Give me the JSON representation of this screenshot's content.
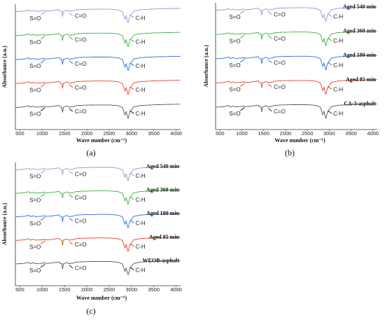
{
  "chart_data": [
    {
      "panel_label": "(a)",
      "type": "line",
      "xlabel": "Wave number (cm⁻¹)",
      "ylabel": "Absorbance (a.u.)",
      "xlim": [
        400,
        4100
      ],
      "xticks": [
        500,
        1000,
        1500,
        2000,
        2500,
        3000,
        3500,
        4000
      ],
      "tick_labels": [
        "500",
        "1000",
        "1500",
        "2000",
        "2500",
        "3000",
        "3500",
        "4000"
      ],
      "series": [
        {
          "color": "#a98bd6",
          "annotations": [
            "S=O",
            "C=O",
            "C-H"
          ]
        },
        {
          "color": "#3cb043",
          "annotations": [
            "S=O",
            "C=O",
            "C-H"
          ]
        },
        {
          "color": "#2a6fdb",
          "annotations": [
            "S=O",
            "C=O",
            "C-H"
          ]
        },
        {
          "color": "#e8412c",
          "annotations": [
            "S=O",
            "C=O",
            "C-H"
          ]
        },
        {
          "color": "#555555",
          "annotations": [
            "S=O",
            "C=O",
            "C-H"
          ]
        }
      ]
    },
    {
      "panel_label": "(b)",
      "type": "line",
      "xlabel": "Wave number (cm⁻¹)",
      "ylabel": "Absorbance (a.u.)",
      "xlim": [
        400,
        4100
      ],
      "xticks": [
        500,
        1000,
        1500,
        2000,
        2500,
        3000,
        3500,
        4000
      ],
      "tick_labels": [
        "500",
        "1000",
        "1500",
        "2000",
        "2500",
        "3000",
        "3500",
        "4000"
      ],
      "series": [
        {
          "name": "Aged 540 min",
          "color": "#a98bd6",
          "annotations": [
            "S=O",
            "C=O",
            "C-H"
          ]
        },
        {
          "name": "Aged 360 min",
          "color": "#3cb043",
          "annotations": [
            "S=O",
            "C=O",
            "C-H"
          ]
        },
        {
          "name": "Aged 180 min",
          "color": "#2a6fdb",
          "annotations": [
            "S=O",
            "C=O",
            "C-H"
          ]
        },
        {
          "name": "Aged 85 min",
          "color": "#e8412c",
          "annotations": [
            "S=O",
            "C=O",
            "C-H"
          ]
        },
        {
          "name": "CA-3-asphalt",
          "color": "#555555",
          "annotations": [
            "S=O",
            "C=O",
            "C-H"
          ]
        }
      ]
    },
    {
      "panel_label": "(c)",
      "type": "line",
      "xlabel": "Wave number (cm⁻¹)",
      "ylabel": "Absorbance (a.u.)",
      "xlim": [
        400,
        4100
      ],
      "xticks": [
        500,
        1000,
        1500,
        2000,
        2500,
        3000,
        3500,
        4000
      ],
      "tick_labels": [
        "500",
        "1000",
        "1500",
        "2000",
        "2500",
        "3000",
        "3500",
        "4000"
      ],
      "series": [
        {
          "name": "Aged 540 min",
          "color": "#a98bd6",
          "annotations": [
            "S=O",
            "C=O",
            "C-H"
          ]
        },
        {
          "name": "Aged 360 min",
          "color": "#3cb043",
          "annotations": [
            "S=O",
            "C=O",
            "C-H"
          ]
        },
        {
          "name": "Aged 180 min",
          "color": "#2a6fdb",
          "annotations": [
            "S=O",
            "C=O",
            "C-H"
          ]
        },
        {
          "name": "Aged 85 min",
          "color": "#e8412c",
          "annotations": [
            "S=O",
            "C=O",
            "C-H"
          ]
        },
        {
          "name": "WEOB-asphalt",
          "color": "#555555",
          "annotations": [
            "S=O",
            "C=O",
            "C-H"
          ]
        }
      ]
    }
  ]
}
